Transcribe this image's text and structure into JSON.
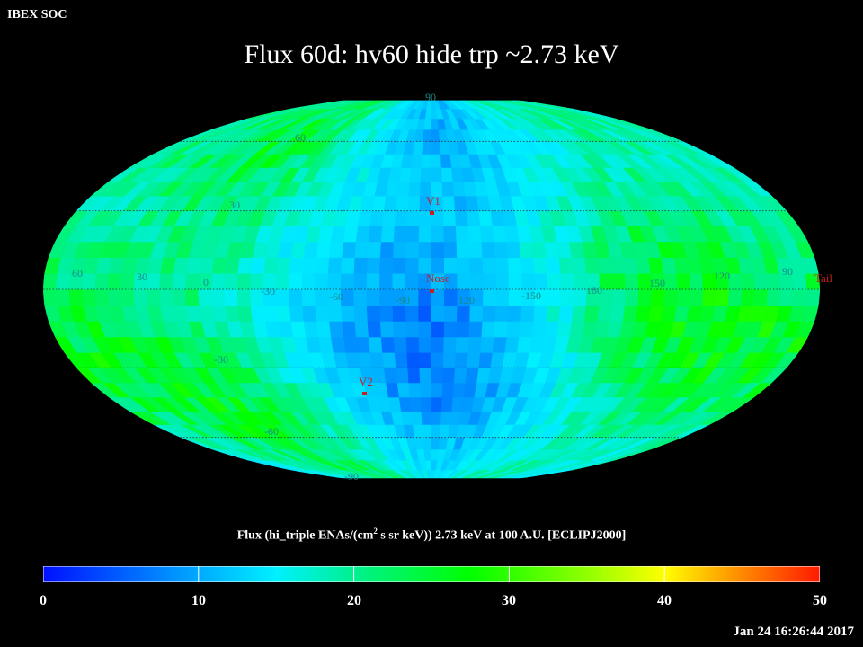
{
  "header": {
    "org_label": "IBEX SOC",
    "title": "Flux   60d: hv60 hide trp ~2.73 keV"
  },
  "map": {
    "projection": "mollweide",
    "grid_labels": {
      "lat_top": "90",
      "lat_60_left": "60",
      "lat_30_left": "30",
      "lat_0_60": "60",
      "lat_0_30": "30",
      "lat_0_0": "0",
      "lat_0_m30": "-30",
      "lat_0_m60": "-60",
      "lat_0_m90": "-90",
      "lat_0_120": "120",
      "lat_0_m150": "-150",
      "lat_0_180": "180",
      "lat_0_150": "150",
      "lat_0_120b": "120",
      "lat_0_90": "90",
      "lat_m30": "-30",
      "lat_m60": "-60",
      "lat_bottom": "-90"
    },
    "markers": {
      "v1": "V1",
      "nose": "Nose",
      "v2": "V2",
      "tail": "Tail"
    }
  },
  "colorbar": {
    "title_before": "Flux (hi_triple ENAs/(cm",
    "title_sup": "2",
    "title_after": " s sr keV))  2.73 keV at 100 A.U. [ECLIPJ2000]",
    "ticks": [
      "0",
      "10",
      "20",
      "30",
      "40",
      "50"
    ],
    "min": 0,
    "max": 50
  },
  "timestamp": "Jan 24 16:26:44 2017",
  "colors": {
    "background": "#000000",
    "marker": "#c82020",
    "label": "#1a8a8a"
  }
}
